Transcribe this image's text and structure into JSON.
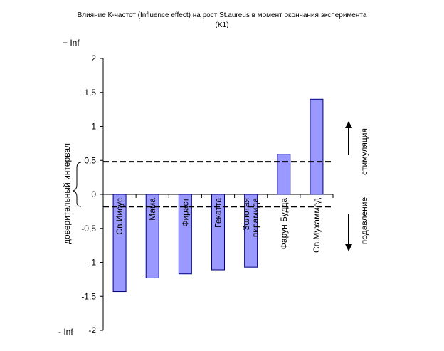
{
  "chart_data": {
    "type": "bar",
    "title": "Влияние К-частот (Influence effect) на рост St.aureus в момент окончания эксперимента (K1)",
    "title_lines": [
      "Влияние К-частот (Influence effect) на рост St.aureus в момент окончания эксперимента",
      "(K1)"
    ],
    "categories": [
      "Св.Иисус",
      "Мама",
      "Фираст",
      "Гекатта",
      "Золотая пирамида",
      "Фарун Будда",
      "Св.Мухаммед"
    ],
    "category_lines": [
      [
        "Св.Иисус"
      ],
      [
        "Мама"
      ],
      [
        "Фираст"
      ],
      [
        "Гекатта"
      ],
      [
        "Золотая",
        "пирамида"
      ],
      [
        "Фарун Будда"
      ],
      [
        "Св.Мухаммед"
      ]
    ],
    "values": [
      -1.43,
      -1.23,
      -1.17,
      -1.11,
      -1.07,
      0.59,
      1.4
    ],
    "ylim": [
      -2,
      2
    ],
    "yticks": [
      2,
      1.5,
      1,
      0.5,
      0,
      -0.5,
      -1,
      -1.5,
      -2
    ],
    "ytick_labels": [
      "2",
      "1,5",
      "1",
      "0,5",
      "0",
      "-0,5",
      "-1",
      "-1,5",
      "-2"
    ],
    "ylabel": "доверительный интервал",
    "top_label": "+ Inf",
    "bottom_label": "- Inf",
    "confidence_lines": [
      0.48,
      -0.18
    ],
    "annotation_up": "стимуляция",
    "annotation_down": "подавление",
    "grid": false,
    "bar_color": "#9999ff",
    "bar_edge": "#000080"
  }
}
